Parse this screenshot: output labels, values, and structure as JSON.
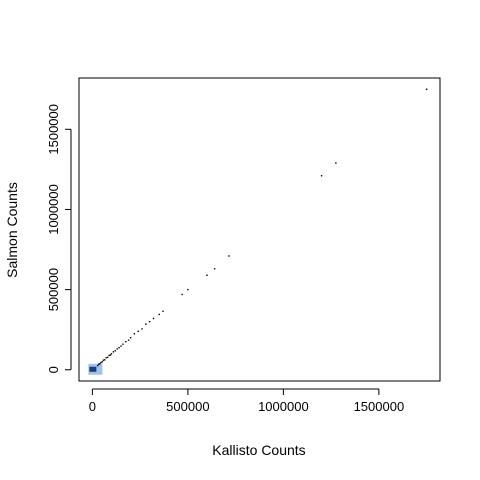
{
  "chart_data": {
    "type": "scatter",
    "title": "",
    "xlabel": "Kallisto Counts",
    "ylabel": "Salmon Counts",
    "xlim": [
      -70000,
      1820000
    ],
    "ylim": [
      -70000,
      1820000
    ],
    "x_ticks": [
      0,
      500000,
      1000000,
      1500000
    ],
    "y_ticks": [
      0,
      500000,
      1000000,
      1500000
    ],
    "x_tick_labels": [
      "0",
      "500000",
      "1000000",
      "1500000"
    ],
    "y_tick_labels": [
      "0",
      "500000",
      "1000000",
      "1500000"
    ],
    "grid": false,
    "legend": "none",
    "point_color": "#000000",
    "dense_core_colors": [
      "#1f3b73",
      "#9ec3ea"
    ],
    "x": [
      1750000,
      1275000,
      1200000,
      715000,
      640000,
      600000,
      500000,
      470000,
      370000,
      350000,
      320000,
      300000,
      280000,
      260000,
      240000,
      220000,
      200000,
      190000,
      175000,
      160000,
      150000,
      140000,
      130000,
      120000,
      110000,
      100000,
      95000,
      88000,
      80000,
      72000,
      65000,
      58000,
      52000,
      45000,
      40000,
      34000,
      28000
    ],
    "y": [
      1750000,
      1290000,
      1210000,
      710000,
      630000,
      590000,
      500000,
      470000,
      365000,
      345000,
      320000,
      300000,
      285000,
      255000,
      240000,
      225000,
      200000,
      185000,
      175000,
      160000,
      148000,
      138000,
      130000,
      118000,
      112000,
      100000,
      92000,
      90000,
      78000,
      75000,
      62000,
      60000,
      50000,
      46000,
      38000,
      35000,
      26000
    ]
  }
}
